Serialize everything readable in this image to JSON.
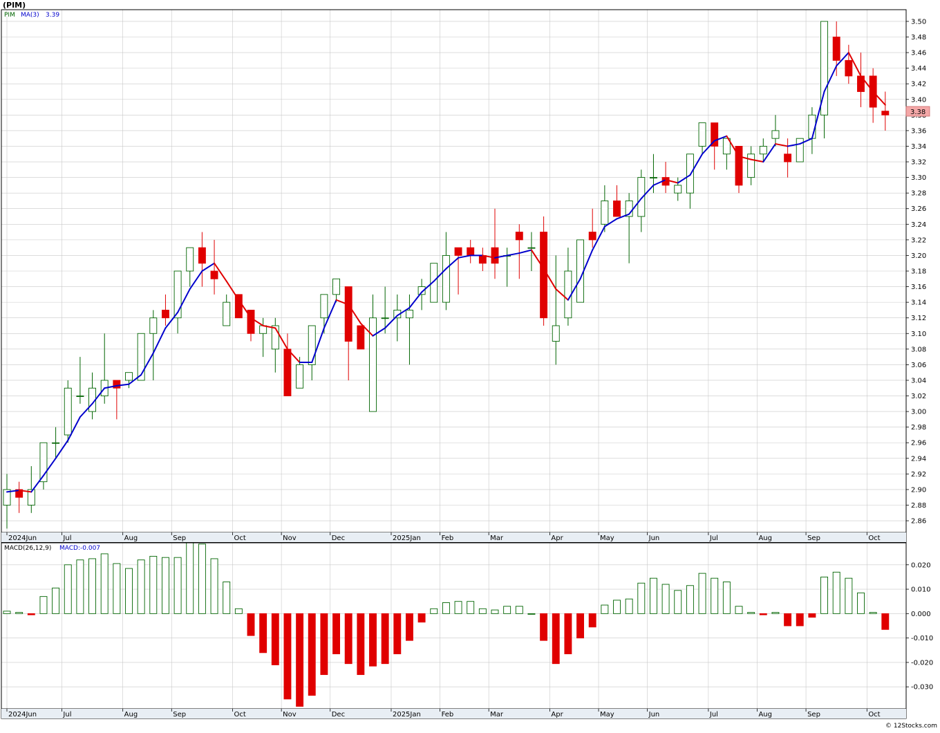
{
  "header": {
    "symbol": "(PIM)",
    "ticker_legend": "PIM",
    "ma_legend": "MA(3)",
    "ma_value": "3.39",
    "macd_legend": "MACD(26,12,9)",
    "macd_value_legend": "MACD:-0.007"
  },
  "price_tag": "3.38",
  "footer": {
    "copyright": "© 12Stocks.com"
  },
  "colors": {
    "up": "#006400",
    "down": "#e00000",
    "ma_rising": "#0000cc",
    "ma_falling": "#e00000",
    "grid": "#c8c8c8",
    "axis_band": "#e8eef4",
    "price_tag_bg": "#f4a8a8"
  },
  "chart_data": [
    {
      "type": "candlestick",
      "series_name": "PIM",
      "ylim": [
        2.845,
        3.515
      ],
      "yticks": [
        2.86,
        2.88,
        2.9,
        2.92,
        2.94,
        2.96,
        2.98,
        3.0,
        3.02,
        3.04,
        3.06,
        3.08,
        3.1,
        3.12,
        3.14,
        3.16,
        3.18,
        3.2,
        3.22,
        3.24,
        3.26,
        3.28,
        3.3,
        3.32,
        3.34,
        3.36,
        3.38,
        3.4,
        3.42,
        3.44,
        3.46,
        3.48,
        3.5
      ],
      "ytick_labels": [
        "2.86",
        "2.88",
        "2.90",
        "2.92",
        "2.94",
        "2.96",
        "2.98",
        "3.00",
        "3.02",
        "3.04",
        "3.06",
        "3.08",
        "3.10",
        "3.12",
        "3.14",
        "3.16",
        "3.18",
        "3.20",
        "3.22",
        "3.24",
        "3.26",
        "3.28",
        "3.30",
        "3.32",
        "3.34",
        "3.36",
        "3.38",
        "3.40",
        "3.42",
        "3.44",
        "3.46",
        "3.48",
        "3.50"
      ],
      "month_labels": [
        {
          "label": "2024Jun",
          "index": -0.5
        },
        {
          "label": "Jul",
          "index": 4
        },
        {
          "label": "Aug",
          "index": 9
        },
        {
          "label": "Sep",
          "index": 13
        },
        {
          "label": "Oct",
          "index": 18
        },
        {
          "label": "Nov",
          "index": 22
        },
        {
          "label": "Dec",
          "index": 26
        },
        {
          "label": "2025Jan",
          "index": 31
        },
        {
          "label": "Feb",
          "index": 35
        },
        {
          "label": "Mar",
          "index": 39
        },
        {
          "label": "Apr",
          "index": 44
        },
        {
          "label": "May",
          "index": 48
        },
        {
          "label": "Jun",
          "index": 52
        },
        {
          "label": "Jul",
          "index": 57
        },
        {
          "label": "Aug",
          "index": 61
        },
        {
          "label": "Sep",
          "index": 65
        },
        {
          "label": "Oct",
          "index": 70
        }
      ],
      "weeks": [
        {
          "o": 2.88,
          "h": 2.92,
          "l": 2.85,
          "c": 2.9
        },
        {
          "o": 2.9,
          "h": 2.91,
          "l": 2.87,
          "c": 2.89
        },
        {
          "o": 2.88,
          "h": 2.93,
          "l": 2.87,
          "c": 2.9
        },
        {
          "o": 2.91,
          "h": 2.96,
          "l": 2.9,
          "c": 2.96
        },
        {
          "o": 2.96,
          "h": 2.98,
          "l": 2.94,
          "c": 2.96
        },
        {
          "o": 2.97,
          "h": 3.04,
          "l": 2.96,
          "c": 3.03
        },
        {
          "o": 3.02,
          "h": 3.07,
          "l": 3.01,
          "c": 3.02
        },
        {
          "o": 3.0,
          "h": 3.05,
          "l": 2.99,
          "c": 3.03
        },
        {
          "o": 3.02,
          "h": 3.1,
          "l": 3.01,
          "c": 3.04
        },
        {
          "o": 3.04,
          "h": 3.04,
          "l": 2.99,
          "c": 3.03
        },
        {
          "o": 3.04,
          "h": 3.05,
          "l": 3.03,
          "c": 3.05
        },
        {
          "o": 3.04,
          "h": 3.1,
          "l": 3.04,
          "c": 3.1
        },
        {
          "o": 3.1,
          "h": 3.13,
          "l": 3.04,
          "c": 3.12
        },
        {
          "o": 3.13,
          "h": 3.15,
          "l": 3.11,
          "c": 3.12
        },
        {
          "o": 3.12,
          "h": 3.17,
          "l": 3.1,
          "c": 3.18
        },
        {
          "o": 3.18,
          "h": 3.21,
          "l": 3.16,
          "c": 3.21
        },
        {
          "o": 3.21,
          "h": 3.23,
          "l": 3.16,
          "c": 3.19
        },
        {
          "o": 3.18,
          "h": 3.22,
          "l": 3.15,
          "c": 3.17
        },
        {
          "o": 3.11,
          "h": 3.15,
          "l": 3.11,
          "c": 3.14
        },
        {
          "o": 3.15,
          "h": 3.15,
          "l": 3.12,
          "c": 3.12
        },
        {
          "o": 3.13,
          "h": 3.13,
          "l": 3.09,
          "c": 3.1
        },
        {
          "o": 3.1,
          "h": 3.12,
          "l": 3.07,
          "c": 3.11
        },
        {
          "o": 3.08,
          "h": 3.12,
          "l": 3.05,
          "c": 3.11
        },
        {
          "o": 3.08,
          "h": 3.1,
          "l": 3.02,
          "c": 3.02
        },
        {
          "o": 3.03,
          "h": 3.07,
          "l": 3.03,
          "c": 3.06
        },
        {
          "o": 3.06,
          "h": 3.1,
          "l": 3.04,
          "c": 3.11
        },
        {
          "o": 3.12,
          "h": 3.15,
          "l": 3.1,
          "c": 3.15
        },
        {
          "o": 3.15,
          "h": 3.17,
          "l": 3.14,
          "c": 3.17
        },
        {
          "o": 3.16,
          "h": 3.16,
          "l": 3.04,
          "c": 3.09
        },
        {
          "o": 3.11,
          "h": 3.11,
          "l": 3.08,
          "c": 3.08
        },
        {
          "o": 3.0,
          "h": 3.15,
          "l": 3.0,
          "c": 3.12
        },
        {
          "o": 3.12,
          "h": 3.16,
          "l": 3.1,
          "c": 3.12
        },
        {
          "o": 3.12,
          "h": 3.15,
          "l": 3.09,
          "c": 3.13
        },
        {
          "o": 3.12,
          "h": 3.15,
          "l": 3.06,
          "c": 3.13
        },
        {
          "o": 3.15,
          "h": 3.17,
          "l": 3.13,
          "c": 3.16
        },
        {
          "o": 3.14,
          "h": 3.19,
          "l": 3.14,
          "c": 3.19
        },
        {
          "o": 3.14,
          "h": 3.23,
          "l": 3.13,
          "c": 3.2
        },
        {
          "o": 3.21,
          "h": 3.21,
          "l": 3.15,
          "c": 3.2
        },
        {
          "o": 3.21,
          "h": 3.22,
          "l": 3.19,
          "c": 3.2
        },
        {
          "o": 3.2,
          "h": 3.21,
          "l": 3.18,
          "c": 3.19
        },
        {
          "o": 3.21,
          "h": 3.26,
          "l": 3.17,
          "c": 3.19
        },
        {
          "o": 3.2,
          "h": 3.21,
          "l": 3.16,
          "c": 3.2
        },
        {
          "o": 3.23,
          "h": 3.24,
          "l": 3.17,
          "c": 3.22
        },
        {
          "o": 3.21,
          "h": 3.23,
          "l": 3.18,
          "c": 3.21
        },
        {
          "o": 3.23,
          "h": 3.25,
          "l": 3.11,
          "c": 3.12
        },
        {
          "o": 3.09,
          "h": 3.2,
          "l": 3.06,
          "c": 3.11
        },
        {
          "o": 3.12,
          "h": 3.21,
          "l": 3.11,
          "c": 3.18
        },
        {
          "o": 3.14,
          "h": 3.22,
          "l": 3.14,
          "c": 3.22
        },
        {
          "o": 3.23,
          "h": 3.26,
          "l": 3.21,
          "c": 3.22
        },
        {
          "o": 3.24,
          "h": 3.29,
          "l": 3.23,
          "c": 3.27
        },
        {
          "o": 3.27,
          "h": 3.29,
          "l": 3.25,
          "c": 3.25
        },
        {
          "o": 3.25,
          "h": 3.28,
          "l": 3.19,
          "c": 3.27
        },
        {
          "o": 3.25,
          "h": 3.31,
          "l": 3.23,
          "c": 3.3
        },
        {
          "o": 3.3,
          "h": 3.33,
          "l": 3.28,
          "c": 3.3
        },
        {
          "o": 3.3,
          "h": 3.32,
          "l": 3.28,
          "c": 3.29
        },
        {
          "o": 3.28,
          "h": 3.3,
          "l": 3.27,
          "c": 3.29
        },
        {
          "o": 3.28,
          "h": 3.33,
          "l": 3.26,
          "c": 3.33
        },
        {
          "o": 3.34,
          "h": 3.37,
          "l": 3.33,
          "c": 3.37
        },
        {
          "o": 3.37,
          "h": 3.37,
          "l": 3.31,
          "c": 3.34
        },
        {
          "o": 3.33,
          "h": 3.35,
          "l": 3.31,
          "c": 3.35
        },
        {
          "o": 3.34,
          "h": 3.34,
          "l": 3.28,
          "c": 3.29
        },
        {
          "o": 3.3,
          "h": 3.34,
          "l": 3.29,
          "c": 3.33
        },
        {
          "o": 3.33,
          "h": 3.35,
          "l": 3.32,
          "c": 3.34
        },
        {
          "o": 3.35,
          "h": 3.38,
          "l": 3.34,
          "c": 3.36
        },
        {
          "o": 3.33,
          "h": 3.35,
          "l": 3.3,
          "c": 3.32
        },
        {
          "o": 3.32,
          "h": 3.35,
          "l": 3.32,
          "c": 3.35
        },
        {
          "o": 3.35,
          "h": 3.39,
          "l": 3.33,
          "c": 3.38
        },
        {
          "o": 3.38,
          "h": 3.5,
          "l": 3.35,
          "c": 3.5
        },
        {
          "o": 3.48,
          "h": 3.5,
          "l": 3.43,
          "c": 3.45
        },
        {
          "o": 3.45,
          "h": 3.47,
          "l": 3.42,
          "c": 3.43
        },
        {
          "o": 3.43,
          "h": 3.46,
          "l": 3.39,
          "c": 3.41
        },
        {
          "o": 3.43,
          "h": 3.44,
          "l": 3.37,
          "c": 3.39
        },
        {
          "o": 3.385,
          "h": 3.41,
          "l": 3.36,
          "c": 3.38
        }
      ],
      "ma3": [
        2.897,
        2.899,
        2.897,
        2.918,
        2.94,
        2.963,
        2.993,
        3.01,
        3.03,
        3.033,
        3.035,
        3.047,
        3.075,
        3.107,
        3.127,
        3.157,
        3.18,
        3.19,
        3.167,
        3.143,
        3.12,
        3.11,
        3.107,
        3.08,
        3.063,
        3.063,
        3.107,
        3.143,
        3.137,
        3.113,
        3.097,
        3.107,
        3.123,
        3.133,
        3.153,
        3.167,
        3.183,
        3.197,
        3.2,
        3.2,
        3.197,
        3.2,
        3.203,
        3.207,
        3.183,
        3.157,
        3.143,
        3.17,
        3.207,
        3.237,
        3.247,
        3.253,
        3.273,
        3.29,
        3.297,
        3.293,
        3.303,
        3.33,
        3.347,
        3.353,
        3.327,
        3.323,
        3.32,
        3.343,
        3.34,
        3.343,
        3.35,
        3.41,
        3.443,
        3.46,
        3.43,
        3.41,
        3.393
      ]
    },
    {
      "type": "bar",
      "series_name": "MACD(26,12,9)",
      "ylim": [
        -0.039,
        0.029
      ],
      "yticks": [
        -0.03,
        -0.02,
        -0.01,
        0.0,
        0.01,
        0.02
      ],
      "ytick_labels": [
        "-0.030",
        "-0.020",
        "-0.010",
        "0.000",
        "0.010",
        "0.020"
      ],
      "month_labels": [
        {
          "label": "2024Jun",
          "index": -0.5
        },
        {
          "label": "Jul",
          "index": 4
        },
        {
          "label": "Aug",
          "index": 9
        },
        {
          "label": "Sep",
          "index": 13
        },
        {
          "label": "Oct",
          "index": 18
        },
        {
          "label": "Nov",
          "index": 22
        },
        {
          "label": "Dec",
          "index": 26
        },
        {
          "label": "2025Jan",
          "index": 31
        },
        {
          "label": "Feb",
          "index": 35
        },
        {
          "label": "Mar",
          "index": 39
        },
        {
          "label": "Apr",
          "index": 44
        },
        {
          "label": "May",
          "index": 48
        },
        {
          "label": "Jun",
          "index": 52
        },
        {
          "label": "Jul",
          "index": 57
        },
        {
          "label": "Aug",
          "index": 61
        },
        {
          "label": "Sep",
          "index": 65
        },
        {
          "label": "Oct",
          "index": 70
        }
      ],
      "values": [
        0.001,
        0.0005,
        -0.0005,
        0.007,
        0.0105,
        0.02,
        0.022,
        0.0225,
        0.0245,
        0.0205,
        0.0185,
        0.022,
        0.0235,
        0.023,
        0.023,
        0.0295,
        0.0285,
        0.0225,
        0.013,
        0.002,
        -0.009,
        -0.016,
        -0.021,
        -0.035,
        -0.038,
        -0.0335,
        -0.025,
        -0.0165,
        -0.0205,
        -0.025,
        -0.0215,
        -0.0205,
        -0.0165,
        -0.011,
        -0.0035,
        0.002,
        0.0045,
        0.005,
        0.005,
        0.002,
        0.0015,
        0.003,
        0.003,
        0.0,
        -0.011,
        -0.0205,
        -0.0165,
        -0.01,
        -0.0055,
        0.0035,
        0.0055,
        0.006,
        0.0125,
        0.0145,
        0.012,
        0.0095,
        0.0115,
        0.0165,
        0.0145,
        0.013,
        0.003,
        0.0005,
        -0.0005,
        0.0005,
        -0.005,
        -0.005,
        -0.0015,
        0.015,
        0.017,
        0.0145,
        0.0085,
        0.0005,
        -0.0065
      ]
    }
  ]
}
